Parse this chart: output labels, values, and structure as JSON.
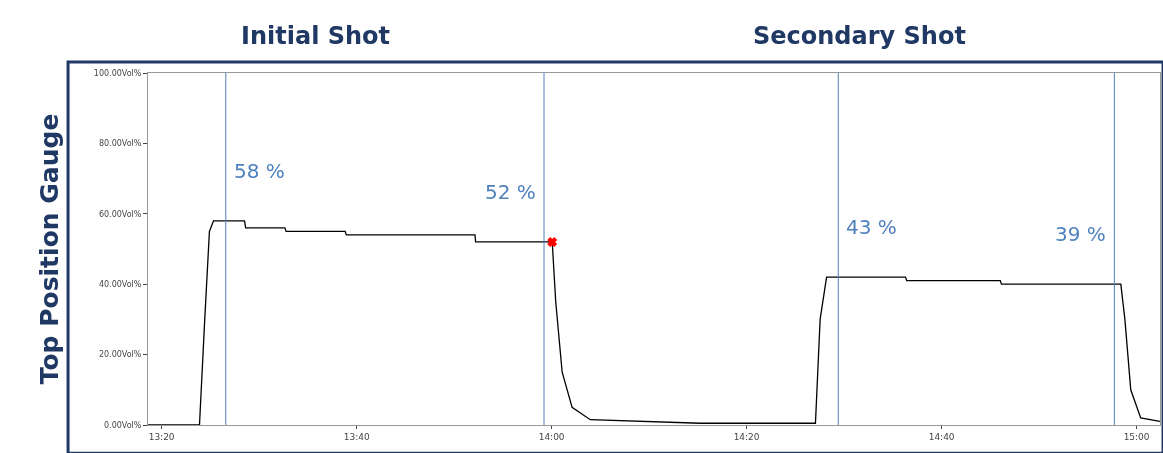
{
  "chart_data": {
    "type": "line",
    "ylabel": "Top Position Gauge",
    "annotations": [
      "Initial Shot",
      "Secondary Shot",
      {
        "text": "58 %",
        "x": 13.443,
        "y": 58
      },
      {
        "text": "52 %",
        "x": 13.987,
        "y": 52
      },
      {
        "text": "43 %",
        "x": 14.49,
        "y": 42
      },
      {
        "text": "39 %",
        "x": 14.962,
        "y": 40
      }
    ],
    "xlim": [
      13.31,
      15.04
    ],
    "xticks": [
      {
        "value": 13.3333,
        "label": "13:20"
      },
      {
        "value": 13.6667,
        "label": "13:40"
      },
      {
        "value": 14,
        "label": "14:00"
      },
      {
        "value": 14.3333,
        "label": "14:20"
      },
      {
        "value": 14.6667,
        "label": "14:40"
      },
      {
        "value": 15,
        "label": "15:00"
      }
    ],
    "ylim": [
      0,
      100
    ],
    "yticks": [
      {
        "value": 0,
        "label": "0.00Vol%"
      },
      {
        "value": 20,
        "label": "20.00Vol%"
      },
      {
        "value": 40,
        "label": "40.00Vol%"
      },
      {
        "value": 60,
        "label": "60.00Vol%"
      },
      {
        "value": 80,
        "label": "80.00Vol%"
      },
      {
        "value": 100,
        "label": "100.00Vol%"
      }
    ],
    "grid": false,
    "marker": "none",
    "line_style": "solid",
    "series": [
      {
        "color": "#000000",
        "x": [
          13.31,
          13.398,
          13.407,
          13.415,
          13.422,
          13.475,
          13.477,
          13.544,
          13.546,
          13.647,
          13.649,
          13.869,
          13.87,
          14.001,
          14.007,
          14.018,
          14.035,
          14.066,
          14.254,
          14.451,
          14.459,
          14.47,
          14.605,
          14.607,
          14.767,
          14.769,
          14.973,
          14.98,
          14.99,
          15.007,
          15.04
        ],
        "values": [
          0,
          0,
          30,
          55,
          58,
          58,
          56,
          56,
          55,
          55,
          54,
          54,
          52,
          52,
          35,
          15,
          5,
          1.5,
          0.5,
          0.5,
          30,
          42,
          42,
          41,
          41,
          40,
          40,
          30,
          10,
          2,
          1
        ]
      },
      {
        "type": "scatter",
        "marker": "cross",
        "color": "#ff0000",
        "x": [
          14.001
        ],
        "values": [
          52
        ]
      }
    ],
    "ref_lines": [
      {
        "axis": "x",
        "value": 13.443,
        "color": "#4f81bd"
      },
      {
        "axis": "x",
        "value": 13.987,
        "color": "#4f81bd"
      },
      {
        "axis": "x",
        "value": 14.49,
        "color": "#4f81bd"
      },
      {
        "axis": "x",
        "value": 14.962,
        "color": "#4f81bd"
      }
    ]
  }
}
